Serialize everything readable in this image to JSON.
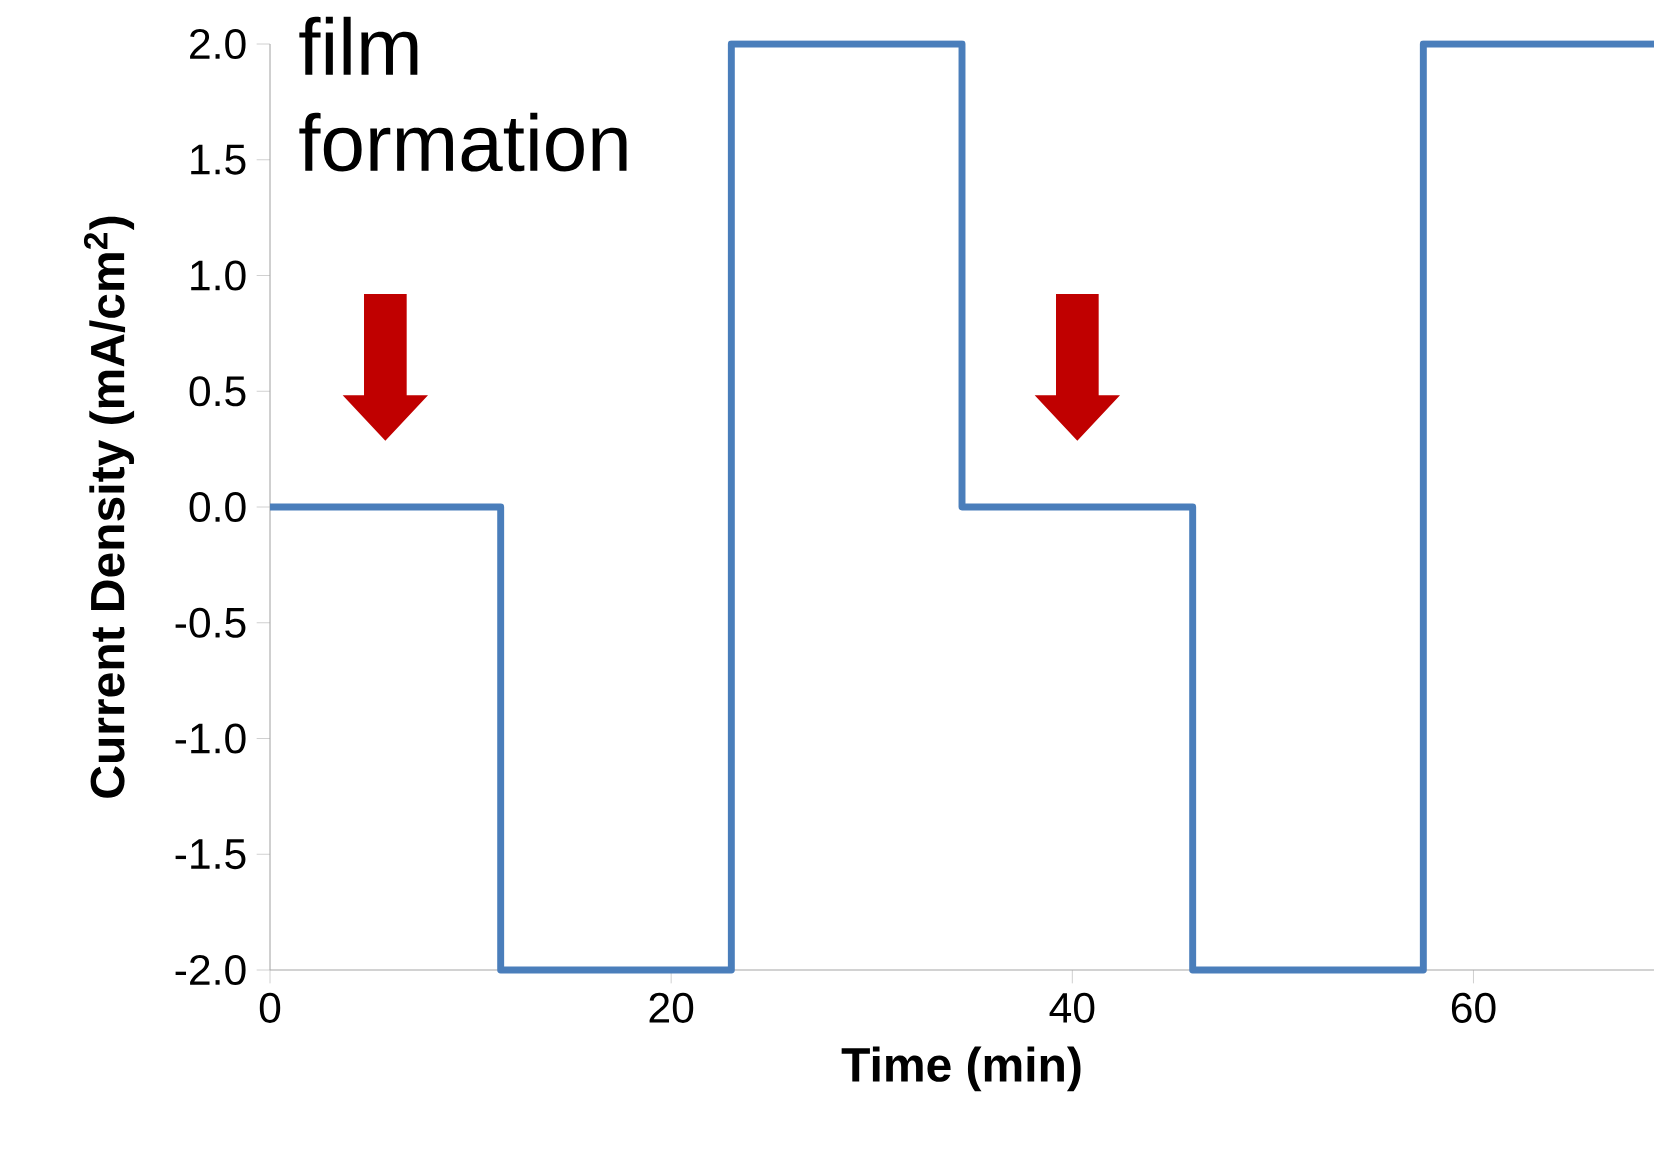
{
  "chart_data": {
    "type": "step",
    "xlabel": "Time (min)",
    "ylabel": "Current Density (mA/cm$^{2}$)",
    "x": [
      0,
      11.5,
      23,
      34.5,
      46,
      57.5,
      69
    ],
    "series": [
      {
        "color": "#4a7ebb",
        "values": [
          0,
          -2,
          2,
          0,
          -2,
          2,
          2
        ]
      }
    ],
    "xlim": [
      0,
      69
    ],
    "xticks": [
      0,
      20,
      40,
      60
    ],
    "ylim": [
      -2,
      2
    ],
    "yticks": [
      {
        "value": -2,
        "label": "-2.0"
      },
      {
        "value": -1.5,
        "label": "-1.5"
      },
      {
        "value": -1,
        "label": "-1.0"
      },
      {
        "value": -0.5,
        "label": "-0.5"
      },
      {
        "value": 0,
        "label": "0.0"
      },
      {
        "value": 0.5,
        "label": "0.5"
      },
      {
        "value": 1,
        "label": "1.0"
      },
      {
        "value": 1.5,
        "label": "1.5"
      },
      {
        "value": 2,
        "label": "2.0"
      }
    ],
    "annotations": [
      "film formation"
    ]
  }
}
